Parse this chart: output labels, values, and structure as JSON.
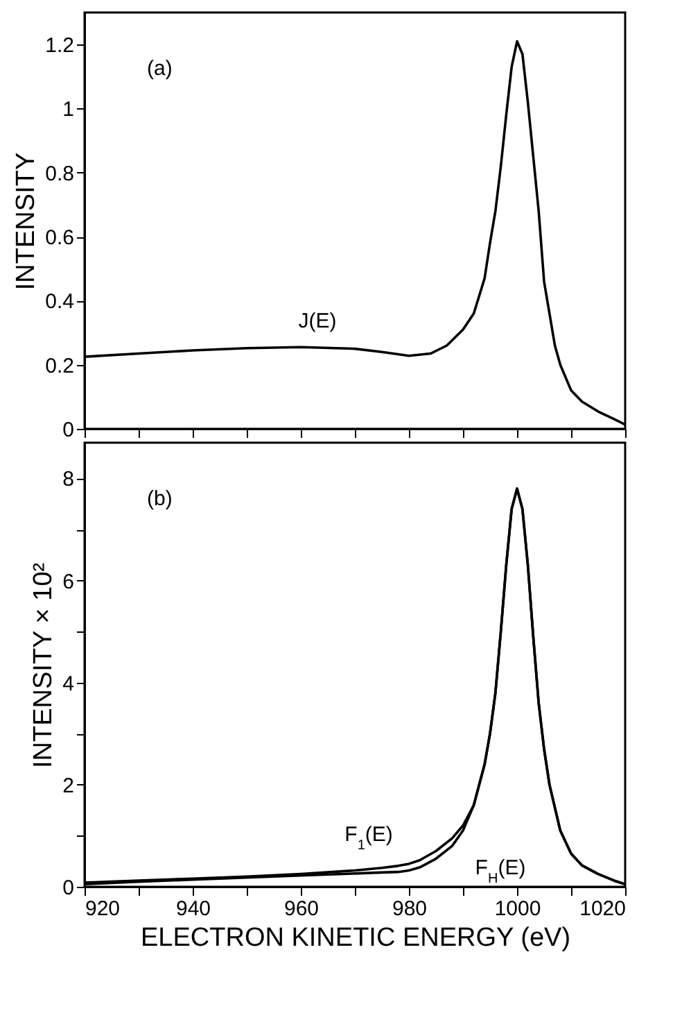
{
  "chart_data": [
    {
      "type": "line",
      "ylabel": "INTENSITY",
      "xlim": [
        920,
        1020
      ],
      "xticks": [
        920,
        {
          "value": 930,
          "label": null
        },
        940,
        {
          "value": 950,
          "label": null
        },
        960,
        {
          "value": 970,
          "label": null
        },
        980,
        {
          "value": 990,
          "label": null
        },
        1000,
        {
          "value": 1010,
          "label": null
        },
        1020
      ],
      "ylim": [
        0,
        1.3
      ],
      "yticks": [
        0,
        0.2,
        0.4,
        0.6,
        0.8,
        1.0,
        1.2
      ],
      "tick_labels": "y",
      "series": [
        {
          "color": "#000000",
          "x": [
            920,
            930,
            940,
            950,
            960,
            970,
            975,
            980,
            984,
            987,
            990,
            992,
            994,
            995,
            996,
            997,
            998,
            999,
            1000,
            1001,
            1002,
            1003,
            1004,
            1005,
            1006,
            1007,
            1008,
            1010,
            1012,
            1015,
            1018,
            1020
          ],
          "values": [
            0.225,
            0.235,
            0.245,
            0.252,
            0.255,
            0.25,
            0.24,
            0.228,
            0.235,
            0.26,
            0.31,
            0.36,
            0.47,
            0.58,
            0.68,
            0.82,
            0.98,
            1.13,
            1.21,
            1.17,
            1.02,
            0.85,
            0.68,
            0.46,
            0.36,
            0.26,
            0.2,
            0.12,
            0.085,
            0.054,
            0.03,
            0.013
          ]
        }
      ],
      "annotations": [
        "(a)",
        "J(E)"
      ]
    },
    {
      "type": "line",
      "xlabel": "ELECTRON KINETIC ENERGY (eV)",
      "ylabel": "INTENSITY × 10²",
      "xlim": [
        920,
        1020
      ],
      "xticks": [
        920,
        {
          "value": 930,
          "label": null
        },
        940,
        {
          "value": 950,
          "label": null
        },
        960,
        {
          "value": 970,
          "label": null
        },
        980,
        {
          "value": 990,
          "label": null
        },
        1000,
        {
          "value": 1010,
          "label": null
        },
        1020
      ],
      "ylim": [
        0,
        8.7
      ],
      "yticks": [
        0,
        {
          "value": 1,
          "label": null
        },
        2,
        {
          "value": 3,
          "label": null
        },
        4,
        {
          "value": 5,
          "label": null
        },
        6,
        {
          "value": 7,
          "label": null
        },
        8
      ],
      "series": [
        {
          "color": "#000000",
          "x": [
            920,
            930,
            940,
            950,
            960,
            970,
            975,
            978,
            980,
            982,
            985,
            988,
            990,
            992,
            994,
            995,
            996,
            997,
            998,
            999,
            1000,
            1001,
            1002,
            1003,
            1004,
            1005,
            1006,
            1008,
            1010,
            1012,
            1015,
            1018,
            1020
          ],
          "values": [
            0.08,
            0.12,
            0.16,
            0.2,
            0.25,
            0.32,
            0.37,
            0.41,
            0.45,
            0.52,
            0.7,
            0.95,
            1.2,
            1.6,
            2.4,
            3.0,
            3.8,
            5.0,
            6.3,
            7.4,
            7.8,
            7.4,
            6.3,
            4.9,
            3.6,
            2.7,
            2.0,
            1.1,
            0.65,
            0.42,
            0.25,
            0.12,
            0.05
          ]
        },
        {
          "color": "#000000",
          "x": [
            920,
            930,
            940,
            950,
            960,
            970,
            975,
            978,
            980,
            982,
            985,
            988,
            990,
            992,
            994,
            995,
            996,
            997,
            998,
            999,
            1000,
            1001,
            1002,
            1003,
            1004,
            1005,
            1006,
            1008,
            1010,
            1012,
            1015,
            1018,
            1020
          ],
          "values": [
            0.05,
            0.1,
            0.14,
            0.18,
            0.22,
            0.26,
            0.28,
            0.29,
            0.32,
            0.38,
            0.55,
            0.8,
            1.1,
            1.6,
            2.4,
            3.0,
            3.8,
            5.0,
            6.3,
            7.4,
            7.8,
            7.4,
            6.3,
            4.9,
            3.6,
            2.7,
            2.0,
            1.1,
            0.65,
            0.42,
            0.25,
            0.12,
            0.05
          ]
        }
      ],
      "annotations": [
        "(b)",
        "F$_{1}$(E)",
        "F$_{H}$(E)"
      ]
    }
  ]
}
